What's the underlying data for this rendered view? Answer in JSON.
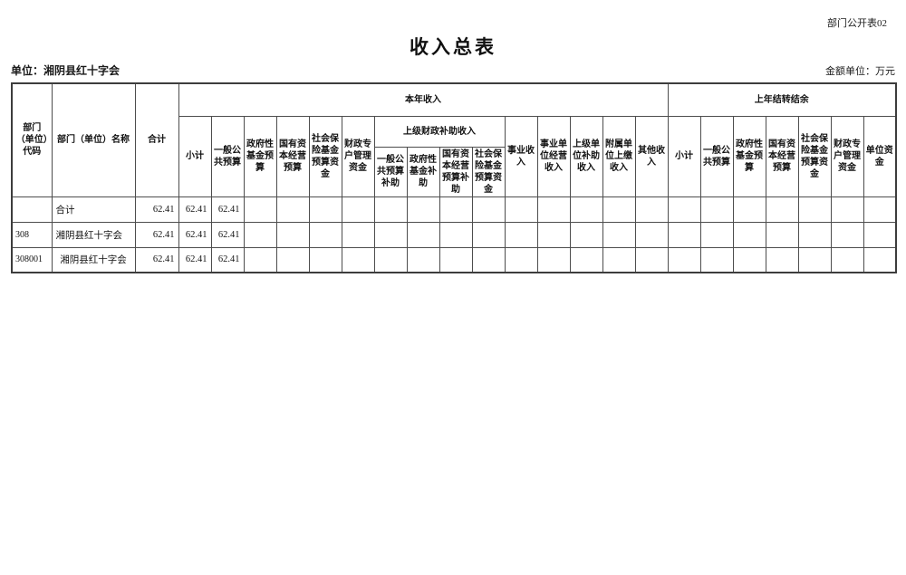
{
  "meta": {
    "doc_code": "部门公开表02",
    "title": "收入总表",
    "unit_label": "单位：湘阴县红十字会",
    "amount_unit_label": "金额单位：万元"
  },
  "table": {
    "header": {
      "code": "部门（单位）代码",
      "name": "部门（单位）名称",
      "total": "合计",
      "current_year": {
        "group": "本年收入",
        "subtotal": "小计",
        "general_budget": "一般公共预算",
        "gov_fund_budget": "政府性基金预算",
        "state_capital_budget": "国有资本经营预算",
        "social_insurance_fund": "社会保险基金预算资金",
        "fiscal_special_account": "财政专户管理资金",
        "superior_fiscal_subsidy": {
          "group": "上级财政补助收入",
          "general_subsidy": "一般公共预算补助",
          "gov_fund_subsidy": "政府性基金补助",
          "state_capital_subsidy": "国有资本经营预算补助",
          "social_insurance_fund2": "社会保险基金预算资金"
        },
        "business_income": "事业收入",
        "business_operation_income": "事业单位经营收入",
        "superior_unit_subsidy_income": "上级单位补助收入",
        "affiliated_unit_turnin_income": "附属单位上缴收入",
        "other_income": "其他收入"
      },
      "carryover": {
        "group": "上年结转结余",
        "subtotal": "小计",
        "general_budget": "一般公共预算",
        "gov_fund_budget": "政府性基金预算",
        "state_capital_budget": "国有资本经营预算",
        "social_insurance_fund": "社会保险基金预算资金",
        "fiscal_special_account": "财政专户管理资金",
        "unit_fund": "单位资金"
      }
    },
    "row_name_align": [
      "left",
      "left",
      "center"
    ],
    "rows": [
      [
        "",
        "合计",
        "62.41",
        "62.41",
        "62.41",
        "",
        "",
        "",
        "",
        "",
        "",
        "",
        "",
        "",
        "",
        "",
        "",
        "",
        "",
        "",
        "",
        "",
        "",
        "",
        ""
      ],
      [
        "308",
        "湘阴县红十字会",
        "62.41",
        "62.41",
        "62.41",
        "",
        "",
        "",
        "",
        "",
        "",
        "",
        "",
        "",
        "",
        "",
        "",
        "",
        "",
        "",
        "",
        "",
        "",
        "",
        ""
      ],
      [
        "308001",
        "湘阴县红十字会",
        "62.41",
        "62.41",
        "62.41",
        "",
        "",
        "",
        "",
        "",
        "",
        "",
        "",
        "",
        "",
        "",
        "",
        "",
        "",
        "",
        "",
        "",
        "",
        "",
        ""
      ]
    ]
  }
}
